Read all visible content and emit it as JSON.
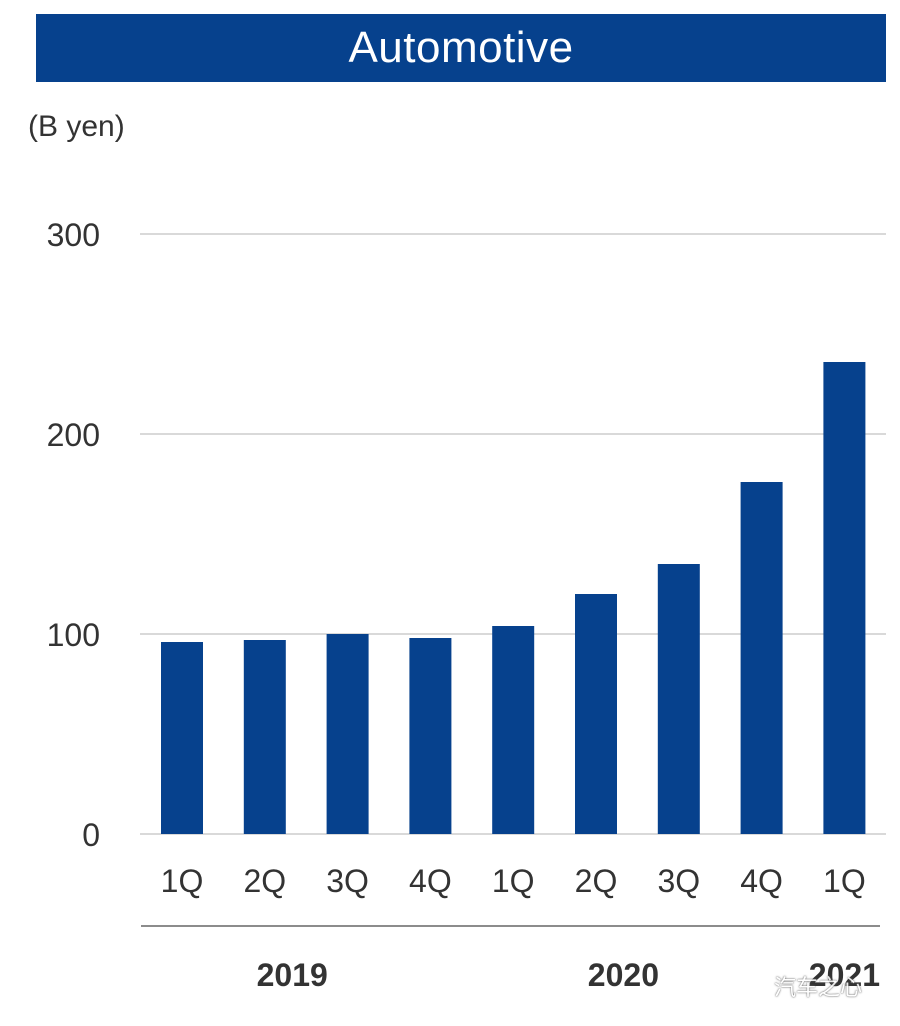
{
  "title": "Automotive",
  "unit": "(B yen)",
  "watermark": "汽车之心",
  "colors": {
    "bar": "#06418d",
    "title_bg": "#06418d",
    "grid": "#d9d9d9",
    "bracket": "#8c8c8c",
    "text": "#333333"
  },
  "chart_data": {
    "type": "bar",
    "title": "Automotive",
    "ylabel": "(B yen)",
    "ylim": [
      0,
      300
    ],
    "yticks": [
      0,
      100,
      200,
      300
    ],
    "grid": true,
    "categories": [
      "1Q",
      "2Q",
      "3Q",
      "4Q",
      "1Q",
      "2Q",
      "3Q",
      "4Q",
      "1Q"
    ],
    "values": [
      96,
      97,
      100,
      98,
      104,
      120,
      135,
      176,
      236
    ],
    "groups": [
      {
        "label": "2019",
        "start": 0,
        "end": 3
      },
      {
        "label": "2020",
        "start": 4,
        "end": 7
      },
      {
        "label": "2021",
        "start": 8,
        "end": 8
      }
    ]
  }
}
